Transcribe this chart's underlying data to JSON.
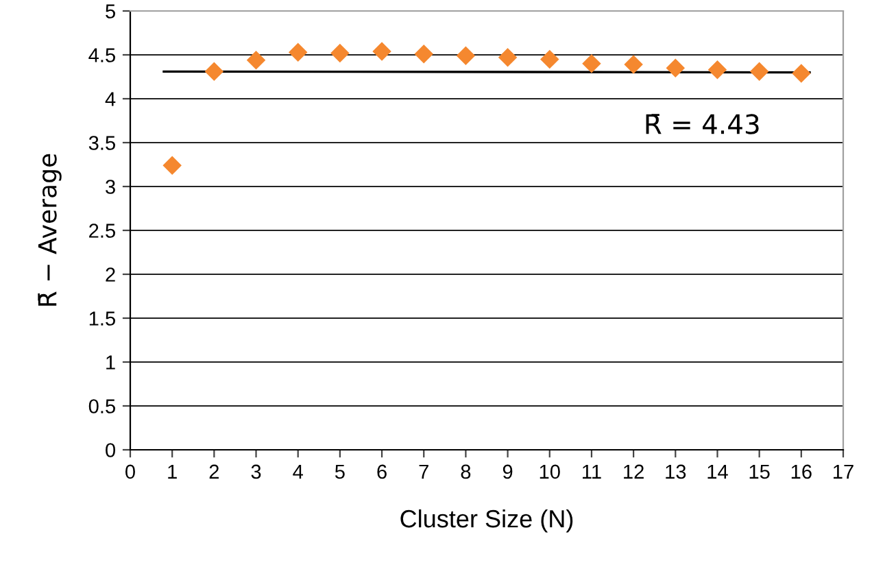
{
  "chart_data": {
    "type": "scatter",
    "xlabel": "Cluster Size (N)",
    "ylabel": "R̄ − Average",
    "xlim": [
      0,
      17
    ],
    "xticks": [
      0,
      1,
      2,
      3,
      4,
      5,
      6,
      7,
      8,
      9,
      10,
      11,
      12,
      13,
      14,
      15,
      16,
      17
    ],
    "ylim": [
      0,
      5
    ],
    "yticks": [
      0,
      0.5,
      1,
      1.5,
      2,
      2.5,
      3,
      3.5,
      4,
      4.5,
      5
    ],
    "grid": "y",
    "marker": "diamond",
    "legend": false,
    "annotations": [
      "R̄ = 4.43"
    ],
    "series": [
      {
        "color": "#f5882f",
        "x": [
          1,
          2,
          3,
          4,
          5,
          6,
          7,
          8,
          9,
          10,
          11,
          12,
          13,
          14,
          15,
          16
        ],
        "values": [
          3.24,
          4.31,
          4.44,
          4.53,
          4.52,
          4.54,
          4.51,
          4.49,
          4.47,
          4.45,
          4.4,
          4.39,
          4.35,
          4.33,
          4.31,
          4.29
        ]
      },
      {
        "type": "line",
        "marker": "none",
        "color": "#000000",
        "x": [
          0.8,
          16.2
        ],
        "values": [
          4.31,
          4.3
        ]
      }
    ]
  }
}
